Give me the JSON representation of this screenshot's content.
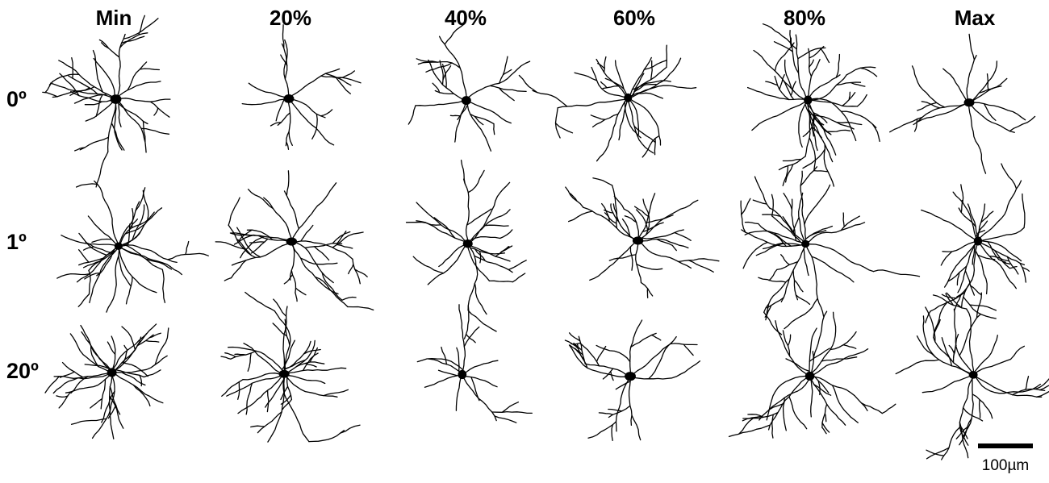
{
  "column_headers": [
    "Min",
    "20%",
    "40%",
    "60%",
    "80%",
    "Max"
  ],
  "row_labels": [
    "0º",
    "1º",
    "20º"
  ],
  "scale_bar": {
    "label": "100µm"
  }
}
